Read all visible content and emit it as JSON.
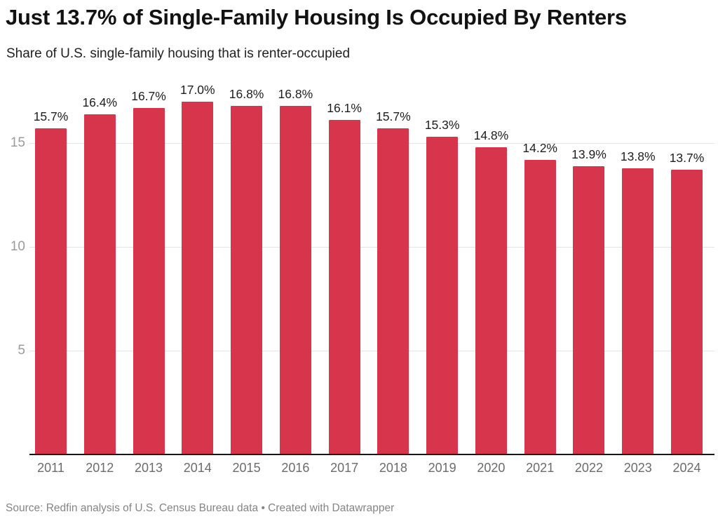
{
  "chart_data": {
    "type": "bar",
    "title": "Just 13.7% of Single-Family Housing Is Occupied By Renters",
    "subtitle": "Share of U.S. single-family housing that is renter-occupied",
    "categories": [
      "2011",
      "2012",
      "2013",
      "2014",
      "2015",
      "2016",
      "2017",
      "2018",
      "2019",
      "2020",
      "2021",
      "2022",
      "2023",
      "2024"
    ],
    "values": [
      15.7,
      16.4,
      16.7,
      17.0,
      16.8,
      16.8,
      16.1,
      15.7,
      15.3,
      14.8,
      14.2,
      13.9,
      13.8,
      13.7
    ],
    "value_labels": [
      "15.7%",
      "16.4%",
      "16.7%",
      "17.0%",
      "16.8%",
      "16.8%",
      "16.1%",
      "15.7%",
      "15.3%",
      "14.8%",
      "14.2%",
      "13.9%",
      "13.8%",
      "13.7%"
    ],
    "xlabel": "",
    "ylabel": "",
    "ylim": [
      0,
      17.2
    ],
    "yticks": [
      5,
      10,
      15
    ],
    "grid": "horizontal",
    "legend": "none",
    "bar_color": "#d7354c",
    "footer": "Source: Redfin analysis of U.S. Census Bureau data • Created with Datawrapper"
  }
}
